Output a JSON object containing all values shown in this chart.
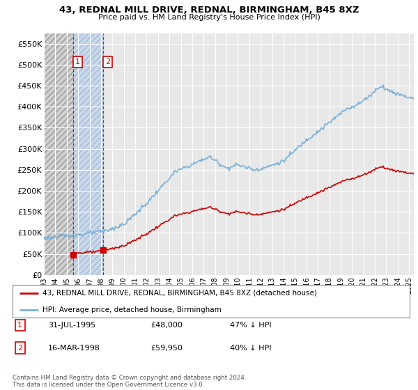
{
  "title": "43, REDNAL MILL DRIVE, REDNAL, BIRMINGHAM, B45 8XZ",
  "subtitle": "Price paid vs. HM Land Registry's House Price Index (HPI)",
  "ylim": [
    0,
    575000
  ],
  "yticks": [
    0,
    50000,
    100000,
    150000,
    200000,
    250000,
    300000,
    350000,
    400000,
    450000,
    500000,
    550000
  ],
  "ytick_labels": [
    "£0",
    "£50K",
    "£100K",
    "£150K",
    "£200K",
    "£250K",
    "£300K",
    "£350K",
    "£400K",
    "£450K",
    "£500K",
    "£550K"
  ],
  "background_color": "#ffffff",
  "plot_bg_color": "#e8e8e8",
  "grid_color": "#ffffff",
  "hpi_color": "#7ab0d8",
  "price_color": "#cc0000",
  "t1_year": 1995.583,
  "t1_price": 48000,
  "t2_year": 1998.208,
  "t2_price": 59950,
  "legend_property": "43, REDNAL MILL DRIVE, REDNAL, BIRMINGHAM, B45 8XZ (detached house)",
  "legend_hpi": "HPI: Average price, detached house, Birmingham",
  "table_row1": [
    "1",
    "31-JUL-1995",
    "£48,000",
    "47% ↓ HPI"
  ],
  "table_row2": [
    "2",
    "16-MAR-1998",
    "£59,950",
    "40% ↓ HPI"
  ],
  "footer": "Contains HM Land Registry data © Crown copyright and database right 2024.\nThis data is licensed under the Open Government Licence v3.0."
}
